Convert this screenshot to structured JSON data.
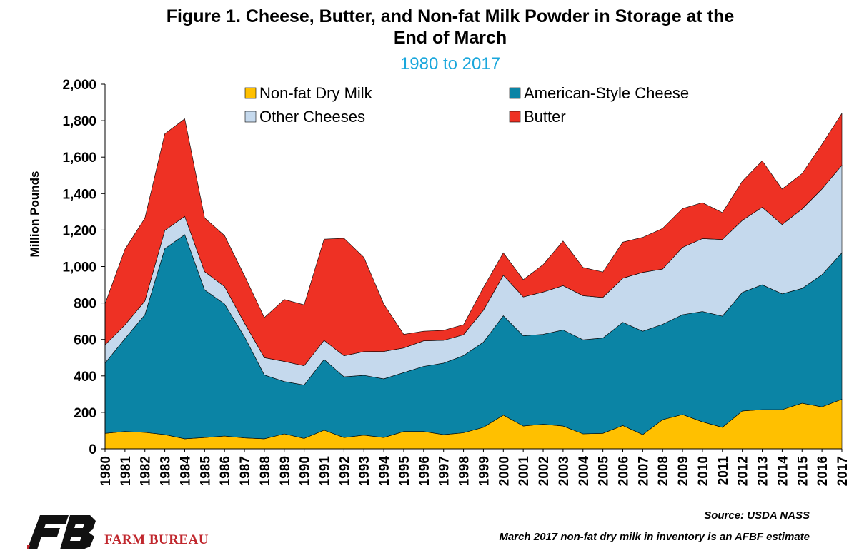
{
  "chart_data": {
    "type": "area",
    "stacked": true,
    "title": "Figure 1. Cheese, Butter, and Non-fat Milk Powder in Storage at the End of March",
    "title_line1": "Figure 1. Cheese, Butter, and Non-fat Milk Powder in Storage at the",
    "title_line2": "End of March",
    "subtitle": "1980 to 2017",
    "ylabel": "Million Pounds",
    "xlabel": "",
    "ylim": [
      0,
      2000
    ],
    "yticks": [
      0,
      200,
      400,
      600,
      800,
      1000,
      1200,
      1400,
      1600,
      1800,
      2000
    ],
    "ytick_labels": [
      "0",
      "200",
      "400",
      "600",
      "800",
      "1,000",
      "1,200",
      "1,400",
      "1,600",
      "1,800",
      "2,000"
    ],
    "legend_position": "top",
    "x": [
      "1980",
      "1981",
      "1982",
      "1983",
      "1984",
      "1985",
      "1986",
      "1987",
      "1988",
      "1989",
      "1990",
      "1991",
      "1992",
      "1993",
      "1994",
      "1995",
      "1996",
      "1997",
      "1998",
      "1999",
      "2000",
      "2001",
      "2002",
      "2003",
      "2004",
      "2005",
      "2006",
      "2007",
      "2008",
      "2009",
      "2010",
      "2011",
      "2012",
      "2013",
      "2014",
      "2015",
      "2016",
      "2017"
    ],
    "series": [
      {
        "name": "Non-fat Dry Milk",
        "color": "#ffc000",
        "values": [
          85,
          95,
          90,
          78,
          55,
          62,
          70,
          60,
          55,
          82,
          57,
          102,
          62,
          75,
          62,
          95,
          95,
          78,
          88,
          118,
          185,
          125,
          135,
          125,
          82,
          85,
          128,
          78,
          160,
          188,
          148,
          118,
          208,
          215,
          215,
          250,
          230,
          272
        ]
      },
      {
        "name": "American-Style Cheese",
        "color": "#0b84a5",
        "values": [
          385,
          510,
          645,
          1020,
          1120,
          810,
          725,
          555,
          350,
          287,
          293,
          388,
          333,
          328,
          322,
          323,
          357,
          392,
          423,
          467,
          545,
          495,
          493,
          527,
          516,
          523,
          566,
          567,
          523,
          548,
          605,
          610,
          650,
          685,
          635,
          630,
          725,
          803
        ]
      },
      {
        "name": "Other Cheeses",
        "color": "#c5d9ed",
        "values": [
          100,
          75,
          75,
          100,
          100,
          100,
          95,
          75,
          95,
          110,
          105,
          105,
          115,
          130,
          150,
          135,
          140,
          125,
          115,
          175,
          222,
          213,
          232,
          243,
          242,
          222,
          242,
          323,
          303,
          369,
          400,
          420,
          395,
          425,
          380,
          435,
          470,
          480
        ]
      },
      {
        "name": "Butter",
        "color": "#ee3124",
        "values": [
          225,
          415,
          455,
          530,
          535,
          295,
          280,
          260,
          220,
          340,
          335,
          555,
          645,
          517,
          260,
          75,
          53,
          55,
          55,
          125,
          123,
          95,
          150,
          245,
          155,
          140,
          198,
          192,
          223,
          213,
          197,
          148,
          215,
          255,
          195,
          195,
          245,
          285
        ]
      }
    ]
  },
  "legend": [
    {
      "label": "Non-fat Dry Milk",
      "color": "#ffc000"
    },
    {
      "label": "American-Style Cheese",
      "color": "#0b84a5"
    },
    {
      "label": "Other Cheeses",
      "color": "#c5d9ed"
    },
    {
      "label": "Butter",
      "color": "#ee3124"
    }
  ],
  "source": "Source: USDA NASS",
  "footnote": "March 2017 non-fat dry milk in inventory is an AFBF estimate",
  "logo": {
    "name": "farm-bureau-logo",
    "text": "FARM BUREAU",
    "mark": "FB",
    "brand_color": "#c0272d"
  }
}
